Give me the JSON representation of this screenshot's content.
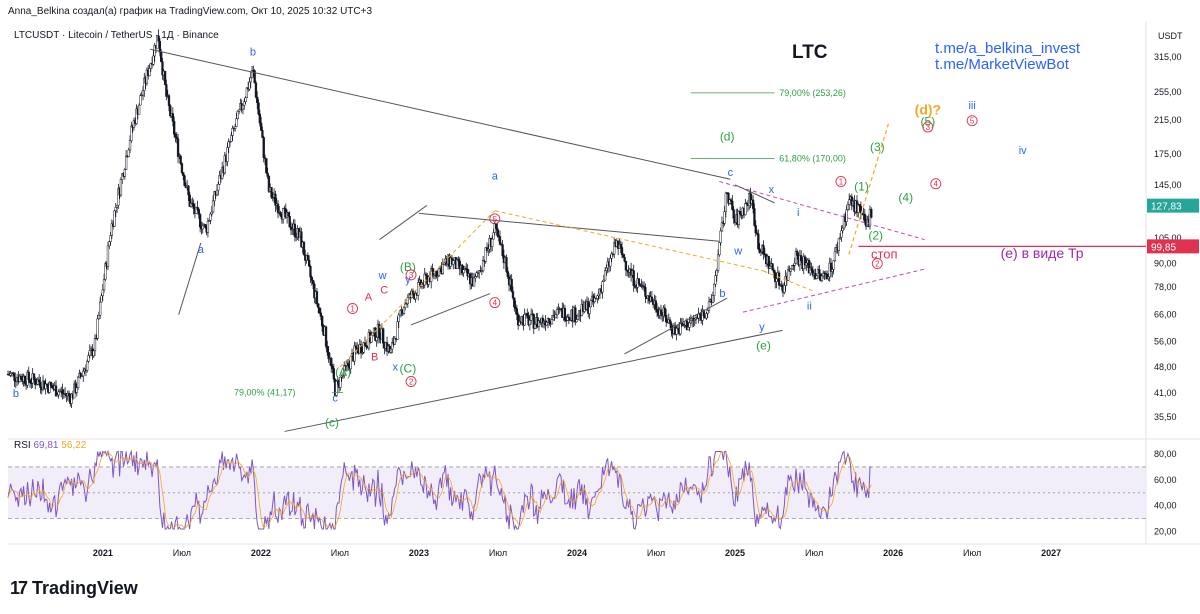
{
  "header": {
    "credit": "Anna_Belkina создал(а) график на TradingView.com, Окт 10, 2025 10:32 UTC+3",
    "symbol_line": "LTCUSDT · Litecoin / TetherUS · 1Д · Binance",
    "ticker": "LTC",
    "promo": [
      "t.me/a_belkina_invest",
      "t.me/MarketViewBot"
    ],
    "currency": "USDT"
  },
  "logo": {
    "mark": "17",
    "text": "TradingView"
  },
  "colors": {
    "candle": "#131722",
    "price_tag": "#26a69a",
    "stop_line": "#e0324e",
    "wave_blue": "#2962ff",
    "wave_green": "#2ea043",
    "wave_red": "#e0324e",
    "wave_orange": "#f5a623",
    "wave_purple": "#9c27b0",
    "rsi": "#7e57c2",
    "rsi_ma": "#f5a623"
  },
  "chart_data": {
    "type": "candlestick",
    "title": "LTCUSDT · Litecoin / TetherUS · 1Д · Binance",
    "y_scale": "log",
    "ylim": [
      32,
      380
    ],
    "y_ticks": [
      {
        "v": 315,
        "label": "315,00"
      },
      {
        "v": 255,
        "label": "255,00"
      },
      {
        "v": 215,
        "label": "215,00"
      },
      {
        "v": 175,
        "label": "175,00"
      },
      {
        "v": 145,
        "label": "145,00"
      },
      {
        "v": 105,
        "label": "105,00"
      },
      {
        "v": 90,
        "label": "90,00"
      },
      {
        "v": 78,
        "label": "78,00"
      },
      {
        "v": 66,
        "label": "66,00"
      },
      {
        "v": 56,
        "label": "56,00"
      },
      {
        "v": 48,
        "label": "48,00"
      },
      {
        "v": 41,
        "label": "41,00"
      },
      {
        "v": 35.5,
        "label": "35,50"
      }
    ],
    "x_range": [
      2020.4,
      2027.6
    ],
    "x_ticks": [
      {
        "t": 2021.0,
        "label": "2021"
      },
      {
        "t": 2021.5,
        "label": "Июл"
      },
      {
        "t": 2022.0,
        "label": "2022"
      },
      {
        "t": 2022.5,
        "label": "Июл"
      },
      {
        "t": 2023.0,
        "label": "2023"
      },
      {
        "t": 2023.5,
        "label": "Июл"
      },
      {
        "t": 2024.0,
        "label": "2024"
      },
      {
        "t": 2024.5,
        "label": "Июл"
      },
      {
        "t": 2025.0,
        "label": "2025"
      },
      {
        "t": 2025.5,
        "label": "Июл"
      },
      {
        "t": 2026.0,
        "label": "2026"
      },
      {
        "t": 2026.5,
        "label": "Июл"
      },
      {
        "t": 2027.0,
        "label": "2027"
      }
    ],
    "price_path": [
      [
        2020.4,
        46
      ],
      [
        2020.6,
        44
      ],
      [
        2020.8,
        40
      ],
      [
        2020.95,
        55
      ],
      [
        2021.05,
        110
      ],
      [
        2021.18,
        200
      ],
      [
        2021.35,
        360
      ],
      [
        2021.4,
        250
      ],
      [
        2021.55,
        130
      ],
      [
        2021.65,
        110
      ],
      [
        2021.8,
        185
      ],
      [
        2021.95,
        290
      ],
      [
        2022.05,
        140
      ],
      [
        2022.15,
        120
      ],
      [
        2022.25,
        105
      ],
      [
        2022.4,
        60
      ],
      [
        2022.47,
        42
      ],
      [
        2022.6,
        53
      ],
      [
        2022.75,
        60
      ],
      [
        2022.82,
        52
      ],
      [
        2022.9,
        70
      ],
      [
        2023.05,
        82
      ],
      [
        2023.2,
        92
      ],
      [
        2023.35,
        80
      ],
      [
        2023.48,
        110
      ],
      [
        2023.55,
        90
      ],
      [
        2023.62,
        65
      ],
      [
        2023.75,
        63
      ],
      [
        2023.9,
        67
      ],
      [
        2024.0,
        66
      ],
      [
        2024.12,
        72
      ],
      [
        2024.25,
        102
      ],
      [
        2024.35,
        83
      ],
      [
        2024.5,
        70
      ],
      [
        2024.62,
        60
      ],
      [
        2024.75,
        64
      ],
      [
        2024.85,
        70
      ],
      [
        2024.95,
        140
      ],
      [
        2025.0,
        115
      ],
      [
        2025.1,
        135
      ],
      [
        2025.15,
        100
      ],
      [
        2025.3,
        78
      ],
      [
        2025.38,
        95
      ],
      [
        2025.55,
        82
      ],
      [
        2025.62,
        90
      ],
      [
        2025.72,
        132
      ],
      [
        2025.78,
        125
      ],
      [
        2025.83,
        112
      ],
      [
        2025.87,
        128
      ]
    ],
    "last_price": {
      "value": 127.83,
      "label": "127,83"
    },
    "stop": {
      "value": 99.85,
      "label": "99,85",
      "text": "стоп"
    },
    "fib_levels": [
      {
        "label": "79,00% (253,26)",
        "value": 253.26
      },
      {
        "label": "61,80% (170,00)",
        "value": 170.0
      },
      {
        "label": "79,00% (41,17)",
        "value": 41.17
      }
    ],
    "wave_labels": [
      {
        "text": "b",
        "t": 2020.45,
        "v": 40,
        "color": "blue"
      },
      {
        "text": "a",
        "t": 2021.62,
        "v": 96,
        "color": "blue"
      },
      {
        "text": "b",
        "t": 2021.95,
        "v": 318,
        "color": "blue"
      },
      {
        "text": "c",
        "t": 2022.47,
        "v": 39,
        "color": "blue"
      },
      {
        "text": "(c)",
        "t": 2022.45,
        "v": 33.5,
        "color": "green"
      },
      {
        "text": "(A)",
        "t": 2022.52,
        "v": 45.5,
        "color": "green"
      },
      {
        "text": "A",
        "t": 2022.68,
        "v": 72,
        "color": "red"
      },
      {
        "text": "B",
        "t": 2022.72,
        "v": 50,
        "color": "red"
      },
      {
        "text": "C",
        "t": 2022.78,
        "v": 75,
        "color": "red"
      },
      {
        "text": "w",
        "t": 2022.77,
        "v": 82,
        "color": "blue"
      },
      {
        "text": "x",
        "t": 2022.85,
        "v": 47,
        "color": "blue"
      },
      {
        "text": "y",
        "t": 2022.93,
        "v": 80,
        "color": "blue"
      },
      {
        "text": "(B)",
        "t": 2022.93,
        "v": 86,
        "color": "green"
      },
      {
        "text": "(C)",
        "t": 2022.93,
        "v": 46.5,
        "color": "green"
      },
      {
        "text": "a",
        "t": 2023.48,
        "v": 150,
        "color": "blue"
      },
      {
        "text": "(d)",
        "t": 2024.95,
        "v": 190,
        "color": "green"
      },
      {
        "text": "c",
        "t": 2024.97,
        "v": 153,
        "color": "blue"
      },
      {
        "text": "x",
        "t": 2025.23,
        "v": 138,
        "color": "blue"
      },
      {
        "text": "w",
        "t": 2025.02,
        "v": 95,
        "color": "blue"
      },
      {
        "text": "b",
        "t": 2024.92,
        "v": 73.5,
        "color": "blue"
      },
      {
        "text": "i",
        "t": 2025.4,
        "v": 120,
        "color": "blue"
      },
      {
        "text": "ii",
        "t": 2025.47,
        "v": 68,
        "color": "blue"
      },
      {
        "text": "y",
        "t": 2025.17,
        "v": 60,
        "color": "blue"
      },
      {
        "text": "(e)",
        "t": 2025.18,
        "v": 53.5,
        "color": "green"
      },
      {
        "text": "(1)",
        "t": 2025.8,
        "v": 140,
        "color": "green"
      },
      {
        "text": "(2)",
        "t": 2025.89,
        "v": 104,
        "color": "green"
      },
      {
        "text": "(3)",
        "t": 2025.9,
        "v": 178,
        "color": "green"
      },
      {
        "text": "(4)",
        "t": 2026.08,
        "v": 131,
        "color": "green"
      },
      {
        "text": "(5)",
        "t": 2026.22,
        "v": 208,
        "color": "green"
      },
      {
        "text": "(d)?",
        "t": 2026.22,
        "v": 222,
        "color": "orange"
      },
      {
        "text": "iii",
        "t": 2026.5,
        "v": 230,
        "color": "blue"
      },
      {
        "text": "iv",
        "t": 2026.82,
        "v": 175,
        "color": "blue"
      },
      {
        "text": "(e) в виде Тр",
        "t": 2026.68,
        "v": 93,
        "color": "purple"
      }
    ],
    "circled_labels": [
      {
        "text": "1",
        "t": 2022.58,
        "v": 68.5
      },
      {
        "text": "2",
        "t": 2022.95,
        "v": 44
      },
      {
        "text": "3",
        "t": 2022.95,
        "v": 84
      },
      {
        "text": "4",
        "t": 2023.48,
        "v": 71
      },
      {
        "text": "5",
        "t": 2023.48,
        "v": 118
      },
      {
        "text": "1",
        "t": 2025.67,
        "v": 148
      },
      {
        "text": "2",
        "t": 2025.9,
        "v": 90
      },
      {
        "text": "4",
        "t": 2026.27,
        "v": 146
      },
      {
        "text": "5",
        "t": 2026.5,
        "v": 214
      },
      {
        "text": "3",
        "t": 2026.22,
        "v": 206
      }
    ],
    "rsi": {
      "label": "RSI",
      "value": 69.81,
      "value_label": "69,81",
      "ma": 56.22,
      "ma_label": "56,22",
      "ylim": [
        15,
        87
      ],
      "y_ticks": [
        {
          "v": 80,
          "label": "80,00"
        },
        {
          "v": 60,
          "label": "60,00"
        },
        {
          "v": 40,
          "label": "40,00"
        },
        {
          "v": 20,
          "label": "20,00"
        }
      ],
      "band": [
        30,
        70
      ]
    }
  }
}
